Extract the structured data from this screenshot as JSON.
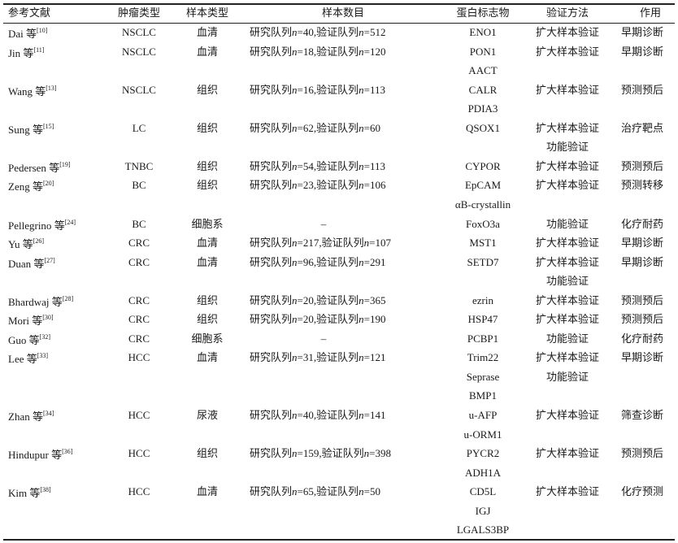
{
  "header": {
    "reference": "参考文献",
    "tumor_type": "肿瘤类型",
    "sample_type": "样本类型",
    "sample_count": "样本数目",
    "protein_marker": "蛋白标志物",
    "validation_method": "验证方法",
    "role": "作用"
  },
  "cohort_labels": {
    "train": "研究队列",
    "validation": "验证队列",
    "n": "n",
    "sep": ","
  },
  "rows": [
    {
      "author": "Dai",
      "etal": "等",
      "ref": "[10]",
      "tumor": "NSCLC",
      "sample": "血清",
      "cohort": {
        "train_n": "40",
        "val_n": "512"
      },
      "markers": [
        "ENO1"
      ],
      "main_marker": "ENO1",
      "methods": [
        "扩大样本验证"
      ],
      "role": "早期诊断"
    },
    {
      "author": "Jin",
      "etal": "等",
      "ref": "[11]",
      "tumor": "NSCLC",
      "sample": "血清",
      "cohort": {
        "train_n": "18",
        "val_n": "120"
      },
      "markers": [
        "PON1"
      ],
      "main_marker": "PON1",
      "methods": [
        "扩大样本验证"
      ],
      "role": "早期诊断"
    },
    {
      "author": "Wang",
      "etal": "等",
      "ref": "[13]",
      "tumor": "NSCLC",
      "sample": "组织",
      "cohort": {
        "train_n": "16",
        "val_n": "113"
      },
      "markers": [
        "AACT",
        "CALR",
        "PDIA3"
      ],
      "main_marker": "CALR",
      "methods": [
        "扩大样本验证"
      ],
      "role": "预测预后"
    },
    {
      "author": "Sung",
      "etal": "等",
      "ref": "[15]",
      "tumor": "LC",
      "sample": "组织",
      "cohort": {
        "train_n": "62",
        "val_n": "60"
      },
      "markers": [
        "QSOX1"
      ],
      "main_marker": "QSOX1",
      "methods": [
        "扩大样本验证",
        "功能验证"
      ],
      "role": "治疗靶点"
    },
    {
      "author": "Pedersen",
      "etal": "等",
      "ref": "[19]",
      "tumor": "TNBC",
      "sample": "组织",
      "cohort": {
        "train_n": "54",
        "val_n": "113"
      },
      "markers": [
        "CYPOR"
      ],
      "main_marker": "CYPOR",
      "methods": [
        "扩大样本验证"
      ],
      "role": "预测预后"
    },
    {
      "author": "Zeng",
      "etal": "等",
      "ref": "[20]",
      "tumor": "BC",
      "sample": "组织",
      "cohort": {
        "train_n": "23",
        "val_n": "106"
      },
      "markers": [
        "EpCAM",
        "αB-crystallin"
      ],
      "main_marker": "EpCAM",
      "methods": [
        "扩大样本验证"
      ],
      "role": "预测转移"
    },
    {
      "author": "Pellegrino",
      "etal": "等",
      "ref": "[24]",
      "tumor": "BC",
      "sample": "细胞系",
      "cohort_text": "–",
      "markers": [
        "FoxO3a"
      ],
      "main_marker": "FoxO3a",
      "methods": [
        "功能验证"
      ],
      "role": "化疗耐药"
    },
    {
      "author": "Yu",
      "etal": "等",
      "ref": "[26]",
      "tumor": "CRC",
      "sample": "血清",
      "cohort": {
        "train_n": "217",
        "val_n": "107"
      },
      "markers": [
        "MST1"
      ],
      "main_marker": "MST1",
      "methods": [
        "扩大样本验证"
      ],
      "role": "早期诊断"
    },
    {
      "author": "Duan",
      "etal": "等",
      "ref": "[27]",
      "tumor": "CRC",
      "sample": "血清",
      "cohort": {
        "train_n": "96",
        "val_n": "291"
      },
      "markers": [
        "SETD7"
      ],
      "main_marker": "SETD7",
      "methods": [
        "扩大样本验证",
        "功能验证"
      ],
      "role": "早期诊断"
    },
    {
      "author": "Bhardwaj",
      "etal": "等",
      "ref": "[28]",
      "tumor": "CRC",
      "sample": "组织",
      "cohort": {
        "train_n": "20",
        "val_n": "365"
      },
      "markers": [
        "ezrin"
      ],
      "main_marker": "ezrin",
      "methods": [
        "扩大样本验证"
      ],
      "role": "预测预后"
    },
    {
      "author": "Mori",
      "etal": "等",
      "ref": "[30]",
      "tumor": "CRC",
      "sample": "组织",
      "cohort": {
        "train_n": "20",
        "val_n": "190"
      },
      "markers": [
        "HSP47"
      ],
      "main_marker": "HSP47",
      "methods": [
        "扩大样本验证"
      ],
      "role": "预测预后"
    },
    {
      "author": "Guo",
      "etal": "等",
      "ref": "[32]",
      "tumor": "CRC",
      "sample": "细胞系",
      "cohort_text": "–",
      "markers": [
        "PCBP1"
      ],
      "main_marker": "PCBP1",
      "methods": [
        "功能验证"
      ],
      "role": "化疗耐药"
    },
    {
      "author": "Lee",
      "etal": "等",
      "ref": "[33]",
      "tumor": "HCC",
      "sample": "血清",
      "cohort": {
        "train_n": "31",
        "val_n": "121"
      },
      "markers": [
        "Trim22",
        "Seprase"
      ],
      "main_marker": "Trim22",
      "methods": [
        "扩大样本验证",
        "功能验证"
      ],
      "role": "早期诊断"
    },
    {
      "author": "Zhan",
      "etal": "等",
      "ref": "[34]",
      "tumor": "HCC",
      "sample": "尿液",
      "cohort": {
        "train_n": "40",
        "val_n": "141"
      },
      "markers": [
        "BMP1",
        "u-AFP",
        "u-ORM1"
      ],
      "main_marker": "u-AFP",
      "methods": [
        "扩大样本验证"
      ],
      "role": "筛查诊断"
    },
    {
      "author": "Hindupur",
      "etal": "等",
      "ref": "[36]",
      "tumor": "HCC",
      "sample": "组织",
      "cohort": {
        "train_n": "159",
        "val_n": "398"
      },
      "markers": [
        "PYCR2",
        "ADH1A"
      ],
      "main_marker": "PYCR2",
      "methods": [
        "扩大样本验证"
      ],
      "role": "预测预后"
    },
    {
      "author": "Kim",
      "etal": "等",
      "ref": "[38]",
      "tumor": "HCC",
      "sample": "血清",
      "cohort": {
        "train_n": "65",
        "val_n": "50"
      },
      "markers": [
        "CD5L",
        "IGJ",
        "LGALS3BP"
      ],
      "main_marker": "CD5L",
      "methods": [
        "扩大样本验证"
      ],
      "role": "化疗预测"
    }
  ]
}
